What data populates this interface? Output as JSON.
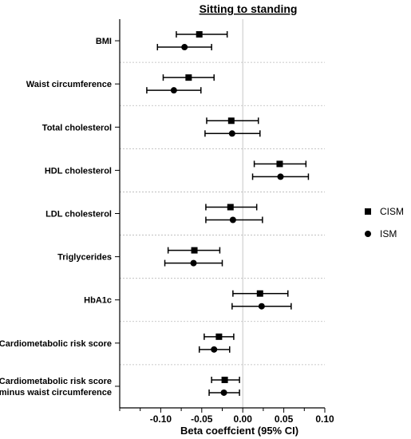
{
  "chart_data": {
    "type": "forest",
    "title": "Sitting to standing",
    "xlabel": "Beta coeffcient (95% CI)",
    "xlim": [
      -0.15,
      0.1
    ],
    "xticks": [
      -0.1,
      -0.05,
      0.0,
      0.05,
      0.1
    ],
    "xtick_labels": [
      "-0.10",
      "-0.05",
      "0.00",
      "0.05",
      "0.10"
    ],
    "reference_line": 0.0,
    "legend_position": "right",
    "categories": [
      "BMI",
      "Waist circumference",
      "Total cholesterol",
      "HDL cholesterol",
      "LDL cholesterol",
      "Triglycerides",
      "HbA1c",
      "Cardiometabolic risk score",
      "Cardiometabolic risk score minus waist circumference"
    ],
    "category_lines": [
      [
        "BMI"
      ],
      [
        "Waist circumference"
      ],
      [
        "Total cholesterol"
      ],
      [
        "HDL cholesterol"
      ],
      [
        "LDL cholesterol"
      ],
      [
        "Triglycerides"
      ],
      [
        "HbA1c"
      ],
      [
        "Cardiometabolic risk score"
      ],
      [
        "Cardiometabolic risk score",
        "minus waist circumference"
      ]
    ],
    "series": [
      {
        "name": "CISM",
        "marker": "square",
        "estimate": [
          -0.053,
          -0.066,
          -0.014,
          0.045,
          -0.015,
          -0.059,
          0.021,
          -0.029,
          -0.022
        ],
        "lower": [
          -0.081,
          -0.097,
          -0.044,
          0.014,
          -0.045,
          -0.091,
          -0.012,
          -0.047,
          -0.038
        ],
        "upper": [
          -0.019,
          -0.035,
          0.019,
          0.077,
          0.017,
          -0.028,
          0.055,
          -0.011,
          -0.004
        ]
      },
      {
        "name": "ISM",
        "marker": "circle",
        "estimate": [
          -0.071,
          -0.084,
          -0.013,
          0.046,
          -0.012,
          -0.06,
          0.023,
          -0.035,
          -0.023
        ],
        "lower": [
          -0.104,
          -0.117,
          -0.046,
          0.012,
          -0.045,
          -0.095,
          -0.013,
          -0.053,
          -0.041
        ],
        "upper": [
          -0.038,
          -0.051,
          0.021,
          0.08,
          0.024,
          -0.025,
          0.059,
          -0.016,
          -0.004
        ]
      }
    ]
  }
}
